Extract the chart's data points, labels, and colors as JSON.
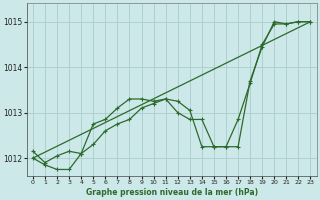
{
  "title": "Graphe pression niveau de la mer (hPa)",
  "background_color": "#cce8e8",
  "line_color": "#2d6a2d",
  "grid_color": "#aacccc",
  "xlim": [
    -0.5,
    23.5
  ],
  "ylim": [
    1011.6,
    1015.4
  ],
  "yticks": [
    1012,
    1013,
    1014,
    1015
  ],
  "xticks": [
    0,
    1,
    2,
    3,
    4,
    5,
    6,
    7,
    8,
    9,
    10,
    11,
    12,
    13,
    14,
    15,
    16,
    17,
    18,
    19,
    20,
    21,
    22,
    23
  ],
  "series1": {
    "x": [
      0,
      1,
      2,
      3,
      4,
      5,
      6,
      7,
      8,
      9,
      10,
      11,
      12,
      13,
      14,
      15,
      16,
      17,
      18,
      19,
      20,
      21,
      22,
      23
    ],
    "y": [
      1012.15,
      1011.9,
      1012.05,
      1012.15,
      1012.1,
      1012.75,
      1012.85,
      1013.1,
      1013.3,
      1013.3,
      1013.25,
      1013.3,
      1013.0,
      1012.85,
      1012.85,
      1012.25,
      1012.25,
      1012.25,
      1013.7,
      1014.45,
      1015.0,
      1014.95,
      1015.0,
      1015.0
    ]
  },
  "series2": {
    "x": [
      0,
      1,
      2,
      3,
      4,
      5,
      6,
      7,
      8,
      9,
      10,
      11,
      12,
      13,
      14,
      15,
      16,
      17,
      18,
      19,
      20,
      21,
      22,
      23
    ],
    "y": [
      1012.0,
      1011.85,
      1011.75,
      1011.75,
      1012.1,
      1012.3,
      1012.6,
      1012.75,
      1012.85,
      1013.1,
      1013.2,
      1013.3,
      1013.25,
      1013.05,
      1012.25,
      1012.25,
      1012.25,
      1012.85,
      1013.65,
      1014.5,
      1014.95,
      1014.95,
      1015.0,
      1015.0
    ]
  },
  "series3": {
    "x": [
      0,
      23
    ],
    "y": [
      1012.0,
      1015.0
    ]
  }
}
